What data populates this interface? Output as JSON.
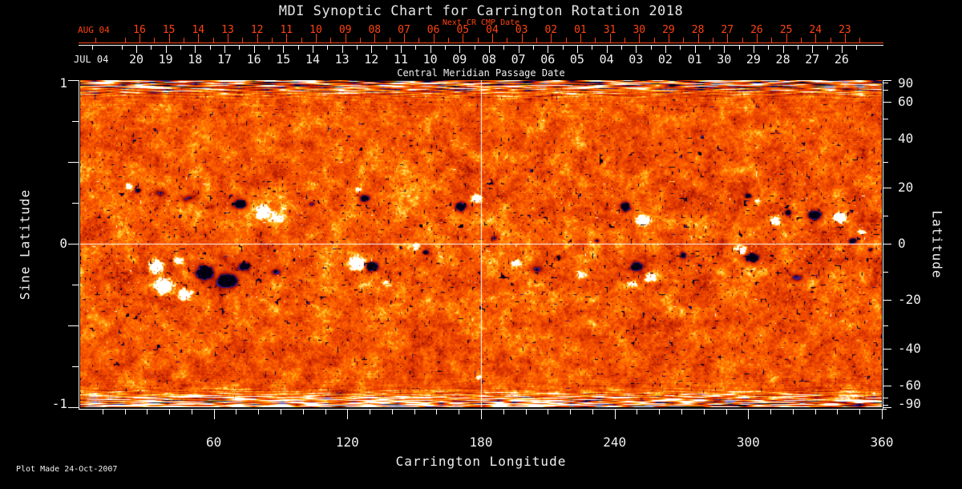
{
  "title": "MDI Synoptic Chart for Carrington Rotation 2018",
  "footer": "Plot Made 24-Oct-2007",
  "colors": {
    "background": "#000000",
    "axis": "#ffffff",
    "text": "#f0f0f0",
    "accent_red": "#ff4310"
  },
  "next_cr_axis": {
    "title": "Next CR CMP Date",
    "month_label": "AUG 04",
    "tick_labels": [
      "16",
      "15",
      "14",
      "13",
      "12",
      "11",
      "10",
      "09",
      "08",
      "07",
      "06",
      "05",
      "04",
      "03",
      "02",
      "01",
      "31",
      "30",
      "29",
      "28",
      "27",
      "26",
      "25",
      "24",
      "23"
    ]
  },
  "cmp_axis": {
    "title": "Central Meridian Passage Date",
    "month_label": "JUL 04",
    "tick_labels": [
      "20",
      "19",
      "18",
      "17",
      "16",
      "15",
      "14",
      "13",
      "12",
      "11",
      "10",
      "09",
      "08",
      "07",
      "06",
      "05",
      "04",
      "03",
      "02",
      "01",
      "30",
      "29",
      "28",
      "27",
      "26"
    ]
  },
  "x_axis": {
    "title": "Carrington Longitude",
    "major_ticks": [
      60,
      120,
      180,
      240,
      300,
      360
    ],
    "minor_step_deg": 10,
    "range": [
      0,
      360
    ]
  },
  "y_left_axis": {
    "title": "Sine Latitude",
    "labeled_ticks": [
      1,
      0,
      -1
    ],
    "major_ticks": [
      1,
      0.5,
      0,
      -0.5,
      -1
    ],
    "minor_ticks": [
      0.75,
      0.25,
      -0.25,
      -0.75
    ],
    "range": [
      -1,
      1
    ]
  },
  "y_right_axis": {
    "title": "Latitude",
    "labeled_ticks": [
      90,
      60,
      40,
      20,
      0,
      -20,
      -40,
      -60,
      -90
    ],
    "tick_step_deg": 10
  },
  "chart_data": {
    "type": "heatmap",
    "description": "Full-disk solar photospheric magnetogram synoptic map for Carrington rotation 2018; orange/red background noise, white = positive-polarity active regions, dark blue/black = negative polarity, saturated streak noise near both poles, white crosshair at longitude 180 and latitude 0.",
    "x_range_deg": [
      0,
      360
    ],
    "sine_latitude_range": [
      -1,
      1
    ],
    "crosshair": {
      "longitude": 180,
      "latitude": 0
    },
    "palette_stops": [
      [
        0.0,
        "#000012"
      ],
      [
        0.05,
        "#080846"
      ],
      [
        0.1,
        "#2828aa"
      ],
      [
        0.14,
        "#50146e"
      ],
      [
        0.18,
        "#7d050f"
      ],
      [
        0.25,
        "#a51400"
      ],
      [
        0.33,
        "#c62800"
      ],
      [
        0.44,
        "#e23c00"
      ],
      [
        0.56,
        "#f55200"
      ],
      [
        0.67,
        "#ff6a00"
      ],
      [
        0.77,
        "#ff9108"
      ],
      [
        0.85,
        "#ffbe28"
      ],
      [
        0.92,
        "#ffe386"
      ],
      [
        1.0,
        "#ffffff"
      ]
    ],
    "active_region_fields": [
      "longitude_deg",
      "latitude_deg",
      "radius_x_px",
      "radius_y_px",
      "amplitude_pos_white_neg_dark"
    ],
    "active_regions": [
      [
        22,
        20.5,
        4,
        3.5,
        1.3
      ],
      [
        26,
        19,
        4,
        3,
        -0.8
      ],
      [
        36,
        18,
        10,
        5,
        -0.5
      ],
      [
        48,
        16,
        9,
        5,
        -0.5
      ],
      [
        58,
        13,
        8,
        4,
        -0.45
      ],
      [
        72,
        14,
        8,
        6,
        -1.15
      ],
      [
        82,
        11,
        8,
        7,
        1.5
      ],
      [
        88,
        9,
        8,
        5,
        0.55
      ],
      [
        104,
        14,
        5,
        4,
        -0.6
      ],
      [
        125,
        19,
        4,
        3,
        0.7
      ],
      [
        128,
        16,
        6,
        4,
        -1.0
      ],
      [
        171,
        13,
        8,
        6,
        -1.05
      ],
      [
        178,
        16,
        6,
        5,
        1.35
      ],
      [
        186,
        2,
        5,
        4,
        -0.6
      ],
      [
        232,
        1,
        4,
        3,
        -0.65
      ],
      [
        245,
        13,
        7,
        6,
        -1.3
      ],
      [
        253,
        8,
        8,
        6,
        1.45
      ],
      [
        300,
        17,
        4,
        3,
        -0.8
      ],
      [
        304,
        15,
        3,
        3,
        0.9
      ],
      [
        312,
        8,
        6,
        5,
        1.45
      ],
      [
        318,
        11,
        4,
        4,
        -0.9
      ],
      [
        330,
        10,
        8,
        5,
        -1.05
      ],
      [
        341,
        9,
        7,
        6,
        1.6
      ],
      [
        351,
        4,
        5,
        3,
        0.95
      ],
      [
        347,
        1,
        5,
        4,
        -0.85
      ],
      [
        355,
        -2,
        4,
        3,
        -0.7
      ],
      [
        34,
        -8,
        9,
        8,
        1.6
      ],
      [
        38,
        -15,
        10,
        9,
        1.7
      ],
      [
        47,
        -18,
        8,
        7,
        1.4
      ],
      [
        44,
        -6,
        6,
        5,
        1.1
      ],
      [
        56,
        -10,
        10,
        9,
        -1.5
      ],
      [
        66,
        -13,
        11,
        8,
        -1.3
      ],
      [
        74,
        -8,
        7,
        6,
        -1.0
      ],
      [
        88,
        -10,
        6,
        4,
        -0.6
      ],
      [
        124,
        -7,
        9,
        8,
        1.55
      ],
      [
        131,
        -8,
        8,
        7,
        -1.35
      ],
      [
        138,
        -14,
        6,
        4,
        0.6
      ],
      [
        151,
        -1,
        4,
        4,
        0.9
      ],
      [
        155,
        -3,
        4,
        3,
        -0.7
      ],
      [
        196,
        -7,
        6,
        5,
        0.75
      ],
      [
        205,
        -9,
        7,
        5,
        -0.65
      ],
      [
        215,
        -5,
        6,
        4,
        -0.55
      ],
      [
        225,
        -11,
        7,
        5,
        0.7
      ],
      [
        248,
        -14,
        6,
        4,
        0.8
      ],
      [
        250,
        -8,
        7,
        5,
        -1.25
      ],
      [
        256,
        -12,
        7,
        5,
        1.25
      ],
      [
        271,
        -4,
        4,
        4,
        -0.7
      ],
      [
        297,
        -2,
        6,
        5,
        1.35
      ],
      [
        302,
        -5,
        9,
        6,
        -1.3
      ],
      [
        322,
        -12,
        8,
        5,
        -0.6
      ],
      [
        179,
        -55,
        3,
        2.5,
        1.0
      ],
      [
        345,
        -70,
        18,
        2,
        1.2
      ]
    ]
  }
}
